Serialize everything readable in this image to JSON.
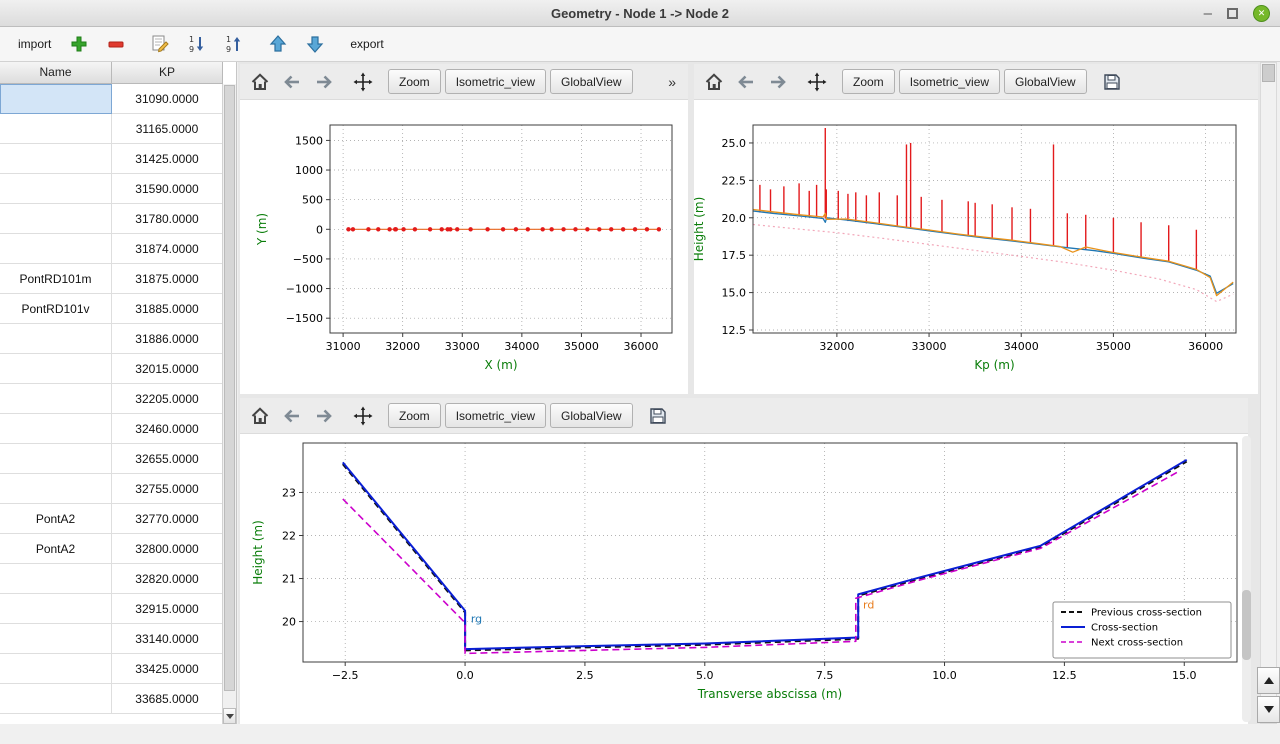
{
  "window": {
    "title": "Geometry - Node 1 -> Node 2",
    "controls": {
      "minimize": "–",
      "close": "✕"
    }
  },
  "main_toolbar": {
    "import_label": "import",
    "export_label": "export"
  },
  "plot_toolbar": {
    "zoom_label": "Zoom",
    "isometric_label": "Isometric_view",
    "global_label": "GlobalView",
    "overflow_label": "»"
  },
  "table": {
    "columns": [
      "Name",
      "KP"
    ],
    "rows": [
      {
        "name": "",
        "kp": "31090.0000",
        "selected": true
      },
      {
        "name": "",
        "kp": "31165.0000"
      },
      {
        "name": "",
        "kp": "31425.0000"
      },
      {
        "name": "",
        "kp": "31590.0000"
      },
      {
        "name": "",
        "kp": "31780.0000"
      },
      {
        "name": "",
        "kp": "31874.0000"
      },
      {
        "name": "PontRD101m",
        "kp": "31875.0000"
      },
      {
        "name": "PontRD101v",
        "kp": "31885.0000"
      },
      {
        "name": "",
        "kp": "31886.0000"
      },
      {
        "name": "",
        "kp": "32015.0000"
      },
      {
        "name": "",
        "kp": "32205.0000"
      },
      {
        "name": "",
        "kp": "32460.0000"
      },
      {
        "name": "",
        "kp": "32655.0000"
      },
      {
        "name": "",
        "kp": "32755.0000"
      },
      {
        "name": "PontA2",
        "kp": "32770.0000"
      },
      {
        "name": "PontA2",
        "kp": "32800.0000"
      },
      {
        "name": "",
        "kp": "32820.0000"
      },
      {
        "name": "",
        "kp": "32915.0000"
      },
      {
        "name": "",
        "kp": "33140.0000"
      },
      {
        "name": "",
        "kp": "33425.0000"
      },
      {
        "name": "",
        "kp": "33685.0000"
      }
    ]
  },
  "colors": {
    "axis_label_green": "#0a7d0a",
    "spike_red": "#e31a1c",
    "profile_blue": "#1f77b4",
    "profile_orange": "#e8921b",
    "bed_pink": "#f2a8ba",
    "cross_blue": "#0a1fd4",
    "prev_black": "#111111",
    "next_magenta": "#cc00cc"
  },
  "chart_data": [
    {
      "id": "chart-plan",
      "type": "line",
      "xlabel": "X (m)",
      "ylabel": "Y (m)",
      "label_color": "#0a7d0a",
      "xlim": [
        30780,
        36520
      ],
      "ylim": [
        -1750,
        1760
      ],
      "xticks": {
        "values": [
          31000,
          32000,
          33000,
          34000,
          35000,
          36000
        ],
        "labels": [
          "31000",
          "32000",
          "33000",
          "34000",
          "35000",
          "36000"
        ]
      },
      "yticks": {
        "values": [
          -1500,
          -1000,
          -500,
          0,
          500,
          1000,
          1500
        ],
        "labels": [
          "−1500",
          "−1000",
          "−500",
          "0",
          "500",
          "1000",
          "1500"
        ]
      },
      "margins": {
        "l": 90,
        "r": 16,
        "t": 25,
        "b": 59
      },
      "ylabel_dx": 64,
      "series": [
        {
          "name": "river-axis",
          "color": "#e8641b",
          "width": 1.2,
          "marker": {
            "r": 2.2,
            "color": "#e31a1c"
          },
          "points": [
            [
              31090,
              0
            ],
            [
              31165,
              0
            ],
            [
              31425,
              0
            ],
            [
              31590,
              0
            ],
            [
              31780,
              0
            ],
            [
              31874,
              0
            ],
            [
              31885,
              0
            ],
            [
              32015,
              0
            ],
            [
              32205,
              0
            ],
            [
              32460,
              0
            ],
            [
              32655,
              0
            ],
            [
              32755,
              0
            ],
            [
              32800,
              0
            ],
            [
              32915,
              0
            ],
            [
              33140,
              0
            ],
            [
              33425,
              0
            ],
            [
              33685,
              0
            ],
            [
              33900,
              0
            ],
            [
              34100,
              0
            ],
            [
              34350,
              0
            ],
            [
              34500,
              0
            ],
            [
              34700,
              0
            ],
            [
              34900,
              0
            ],
            [
              35100,
              0
            ],
            [
              35300,
              0
            ],
            [
              35500,
              0
            ],
            [
              35700,
              0
            ],
            [
              35900,
              0
            ],
            [
              36100,
              0
            ],
            [
              36300,
              0
            ]
          ]
        }
      ]
    },
    {
      "id": "chart-profile",
      "type": "line",
      "xlabel": "Kp (m)",
      "ylabel": "Height (m)",
      "label_color": "#0a7d0a",
      "xlim": [
        31090,
        36330
      ],
      "ylim": [
        12.3,
        26.2
      ],
      "xticks": {
        "values": [
          32000,
          33000,
          34000,
          35000,
          36000
        ],
        "labels": [
          "32000",
          "33000",
          "34000",
          "35000",
          "36000"
        ]
      },
      "yticks": {
        "values": [
          12.5,
          15.0,
          17.5,
          20.0,
          22.5,
          25.0
        ],
        "labels": [
          "12.5",
          "15.0",
          "17.5",
          "20.0",
          "22.5",
          "25.0"
        ]
      },
      "margins": {
        "l": 59,
        "r": 22,
        "t": 25,
        "b": 59
      },
      "ylabel_dx": 50,
      "series": [
        {
          "name": "river-bed",
          "color": "#f2a8ba",
          "width": 1.2,
          "dash": "2,3",
          "points": [
            [
              31090,
              19.55
            ],
            [
              31500,
              19.3
            ],
            [
              32000,
              19.0
            ],
            [
              32500,
              18.62
            ],
            [
              33000,
              18.22
            ],
            [
              33500,
              17.82
            ],
            [
              34000,
              17.42
            ],
            [
              34500,
              17.0
            ],
            [
              35000,
              16.5
            ],
            [
              35500,
              15.9
            ],
            [
              35900,
              15.2
            ],
            [
              36120,
              14.4
            ],
            [
              36300,
              14.9
            ]
          ]
        },
        {
          "name": "cross-section-markers",
          "color": "#e31a1c",
          "width": 1.4,
          "segments": [
            [
              31165,
              20.35,
              22.2
            ],
            [
              31280,
              20.3,
              21.9
            ],
            [
              31425,
              20.2,
              22.1
            ],
            [
              31590,
              20.1,
              22.3
            ],
            [
              31700,
              20.05,
              21.8
            ],
            [
              31780,
              20.0,
              22.2
            ],
            [
              31874,
              19.95,
              26.0
            ],
            [
              31885,
              19.95,
              21.9
            ],
            [
              32015,
              19.85,
              21.8
            ],
            [
              32120,
              19.78,
              21.6
            ],
            [
              32205,
              19.72,
              21.7
            ],
            [
              32320,
              19.62,
              21.5
            ],
            [
              32460,
              19.52,
              21.7
            ],
            [
              32655,
              19.38,
              21.5
            ],
            [
              32755,
              19.3,
              24.9
            ],
            [
              32800,
              19.28,
              25.0
            ],
            [
              32915,
              19.18,
              21.4
            ],
            [
              33140,
              19.0,
              21.2
            ],
            [
              33425,
              18.8,
              21.1
            ],
            [
              33500,
              18.75,
              21.0
            ],
            [
              33685,
              18.6,
              20.9
            ],
            [
              33900,
              18.45,
              20.7
            ],
            [
              34100,
              18.3,
              20.6
            ],
            [
              34350,
              18.1,
              24.9
            ],
            [
              34500,
              18.0,
              20.3
            ],
            [
              34700,
              17.85,
              20.2
            ],
            [
              35000,
              17.6,
              20.0
            ],
            [
              35300,
              17.35,
              19.7
            ],
            [
              35600,
              17.05,
              19.5
            ],
            [
              35900,
              16.55,
              19.2
            ]
          ]
        },
        {
          "name": "left-bank",
          "color": "#1f77b4",
          "width": 1.3,
          "points": [
            [
              31090,
              20.45
            ],
            [
              31300,
              20.3
            ],
            [
              31600,
              20.12
            ],
            [
              31850,
              19.95
            ],
            [
              31874,
              19.7
            ],
            [
              31890,
              20.0
            ],
            [
              32100,
              19.85
            ],
            [
              32400,
              19.62
            ],
            [
              32700,
              19.38
            ],
            [
              33000,
              19.12
            ],
            [
              33300,
              18.88
            ],
            [
              33600,
              18.65
            ],
            [
              33900,
              18.45
            ],
            [
              34200,
              18.22
            ],
            [
              34500,
              18.0
            ],
            [
              34800,
              17.8
            ],
            [
              35000,
              17.62
            ],
            [
              35300,
              17.32
            ],
            [
              35600,
              17.05
            ],
            [
              35900,
              16.5
            ],
            [
              36050,
              16.1
            ],
            [
              36120,
              14.95
            ],
            [
              36300,
              15.6
            ]
          ]
        },
        {
          "name": "right-bank",
          "color": "#e8921b",
          "width": 1.3,
          "points": [
            [
              31090,
              20.55
            ],
            [
              31300,
              20.4
            ],
            [
              31600,
              20.2
            ],
            [
              31850,
              20.05
            ],
            [
              31874,
              20.3
            ],
            [
              31890,
              19.9
            ],
            [
              32100,
              19.92
            ],
            [
              32400,
              19.68
            ],
            [
              32700,
              19.42
            ],
            [
              33000,
              19.18
            ],
            [
              33300,
              18.92
            ],
            [
              33600,
              18.7
            ],
            [
              33900,
              18.5
            ],
            [
              34200,
              18.26
            ],
            [
              34420,
              18.08
            ],
            [
              34560,
              17.7
            ],
            [
              34700,
              18.05
            ],
            [
              34900,
              17.8
            ],
            [
              35000,
              17.68
            ],
            [
              35300,
              17.38
            ],
            [
              35600,
              17.1
            ],
            [
              35900,
              16.55
            ],
            [
              36050,
              16.0
            ],
            [
              36120,
              14.8
            ],
            [
              36300,
              15.7
            ]
          ]
        }
      ]
    },
    {
      "id": "chart-cross",
      "type": "line",
      "xlabel": "Transverse abscissa (m)",
      "ylabel": "Height (m)",
      "label_color": "#0a7d0a",
      "xlim": [
        -3.38,
        16.1
      ],
      "ylim": [
        19.06,
        24.15
      ],
      "xticks": {
        "values": [
          -2.5,
          0.0,
          2.5,
          5.0,
          7.5,
          10.0,
          12.5,
          15.0
        ],
        "labels": [
          "−2.5",
          "0.0",
          "2.5",
          "5.0",
          "7.5",
          "10.0",
          "12.5",
          "15.0"
        ]
      },
      "yticks": {
        "values": [
          20,
          21,
          22,
          23
        ],
        "labels": [
          "20",
          "21",
          "22",
          "23"
        ]
      },
      "margins": {
        "l": 63,
        "r": 11,
        "t": 9,
        "b": 60
      },
      "ylabel_dx": 41,
      "series": [
        {
          "name": "previous-cross-section",
          "color": "#111111",
          "width": 2,
          "dash": "6,4",
          "points": [
            [
              -2.55,
              23.66
            ],
            [
              0,
              20.21
            ],
            [
              0,
              19.33
            ],
            [
              2.5,
              19.4
            ],
            [
              5,
              19.46
            ],
            [
              8.2,
              19.6
            ],
            [
              8.2,
              20.6
            ],
            [
              9.5,
              21.0
            ],
            [
              12,
              21.73
            ],
            [
              15.05,
              23.72
            ]
          ]
        },
        {
          "name": "cross-section",
          "color": "#0a1fd4",
          "width": 2,
          "points": [
            [
              -2.55,
              23.7
            ],
            [
              0,
              20.25
            ],
            [
              0,
              19.36
            ],
            [
              2.5,
              19.43
            ],
            [
              5,
              19.49
            ],
            [
              8.2,
              19.63
            ],
            [
              8.2,
              20.63
            ],
            [
              9.5,
              21.03
            ],
            [
              12,
              21.76
            ],
            [
              15.05,
              23.76
            ]
          ]
        },
        {
          "name": "next-cross-section",
          "color": "#cc00cc",
          "width": 1.6,
          "dash": "7,4",
          "points": [
            [
              -2.55,
              22.85
            ],
            [
              0,
              19.97
            ],
            [
              0,
              19.26
            ],
            [
              2.5,
              19.33
            ],
            [
              5,
              19.4
            ],
            [
              8.15,
              19.54
            ],
            [
              8.15,
              20.54
            ],
            [
              9.5,
              20.97
            ],
            [
              12,
              21.7
            ],
            [
              14.9,
              23.5
            ]
          ]
        }
      ],
      "annotations": [
        {
          "x": 0.12,
          "y": 19.98,
          "text": "rg",
          "color": "#1f77b4"
        },
        {
          "x": 8.3,
          "y": 20.3,
          "text": "rd",
          "color": "#e87d1e"
        }
      ],
      "legend": {
        "position": "lower-right",
        "entries": [
          {
            "label": "Previous cross-section",
            "color": "#111111",
            "dash": "5,3",
            "width": 2
          },
          {
            "label": "Cross-section",
            "color": "#0a1fd4",
            "width": 2
          },
          {
            "label": "Next cross-section",
            "color": "#cc00cc",
            "dash": "5,3",
            "width": 1.6
          }
        ]
      }
    }
  ]
}
